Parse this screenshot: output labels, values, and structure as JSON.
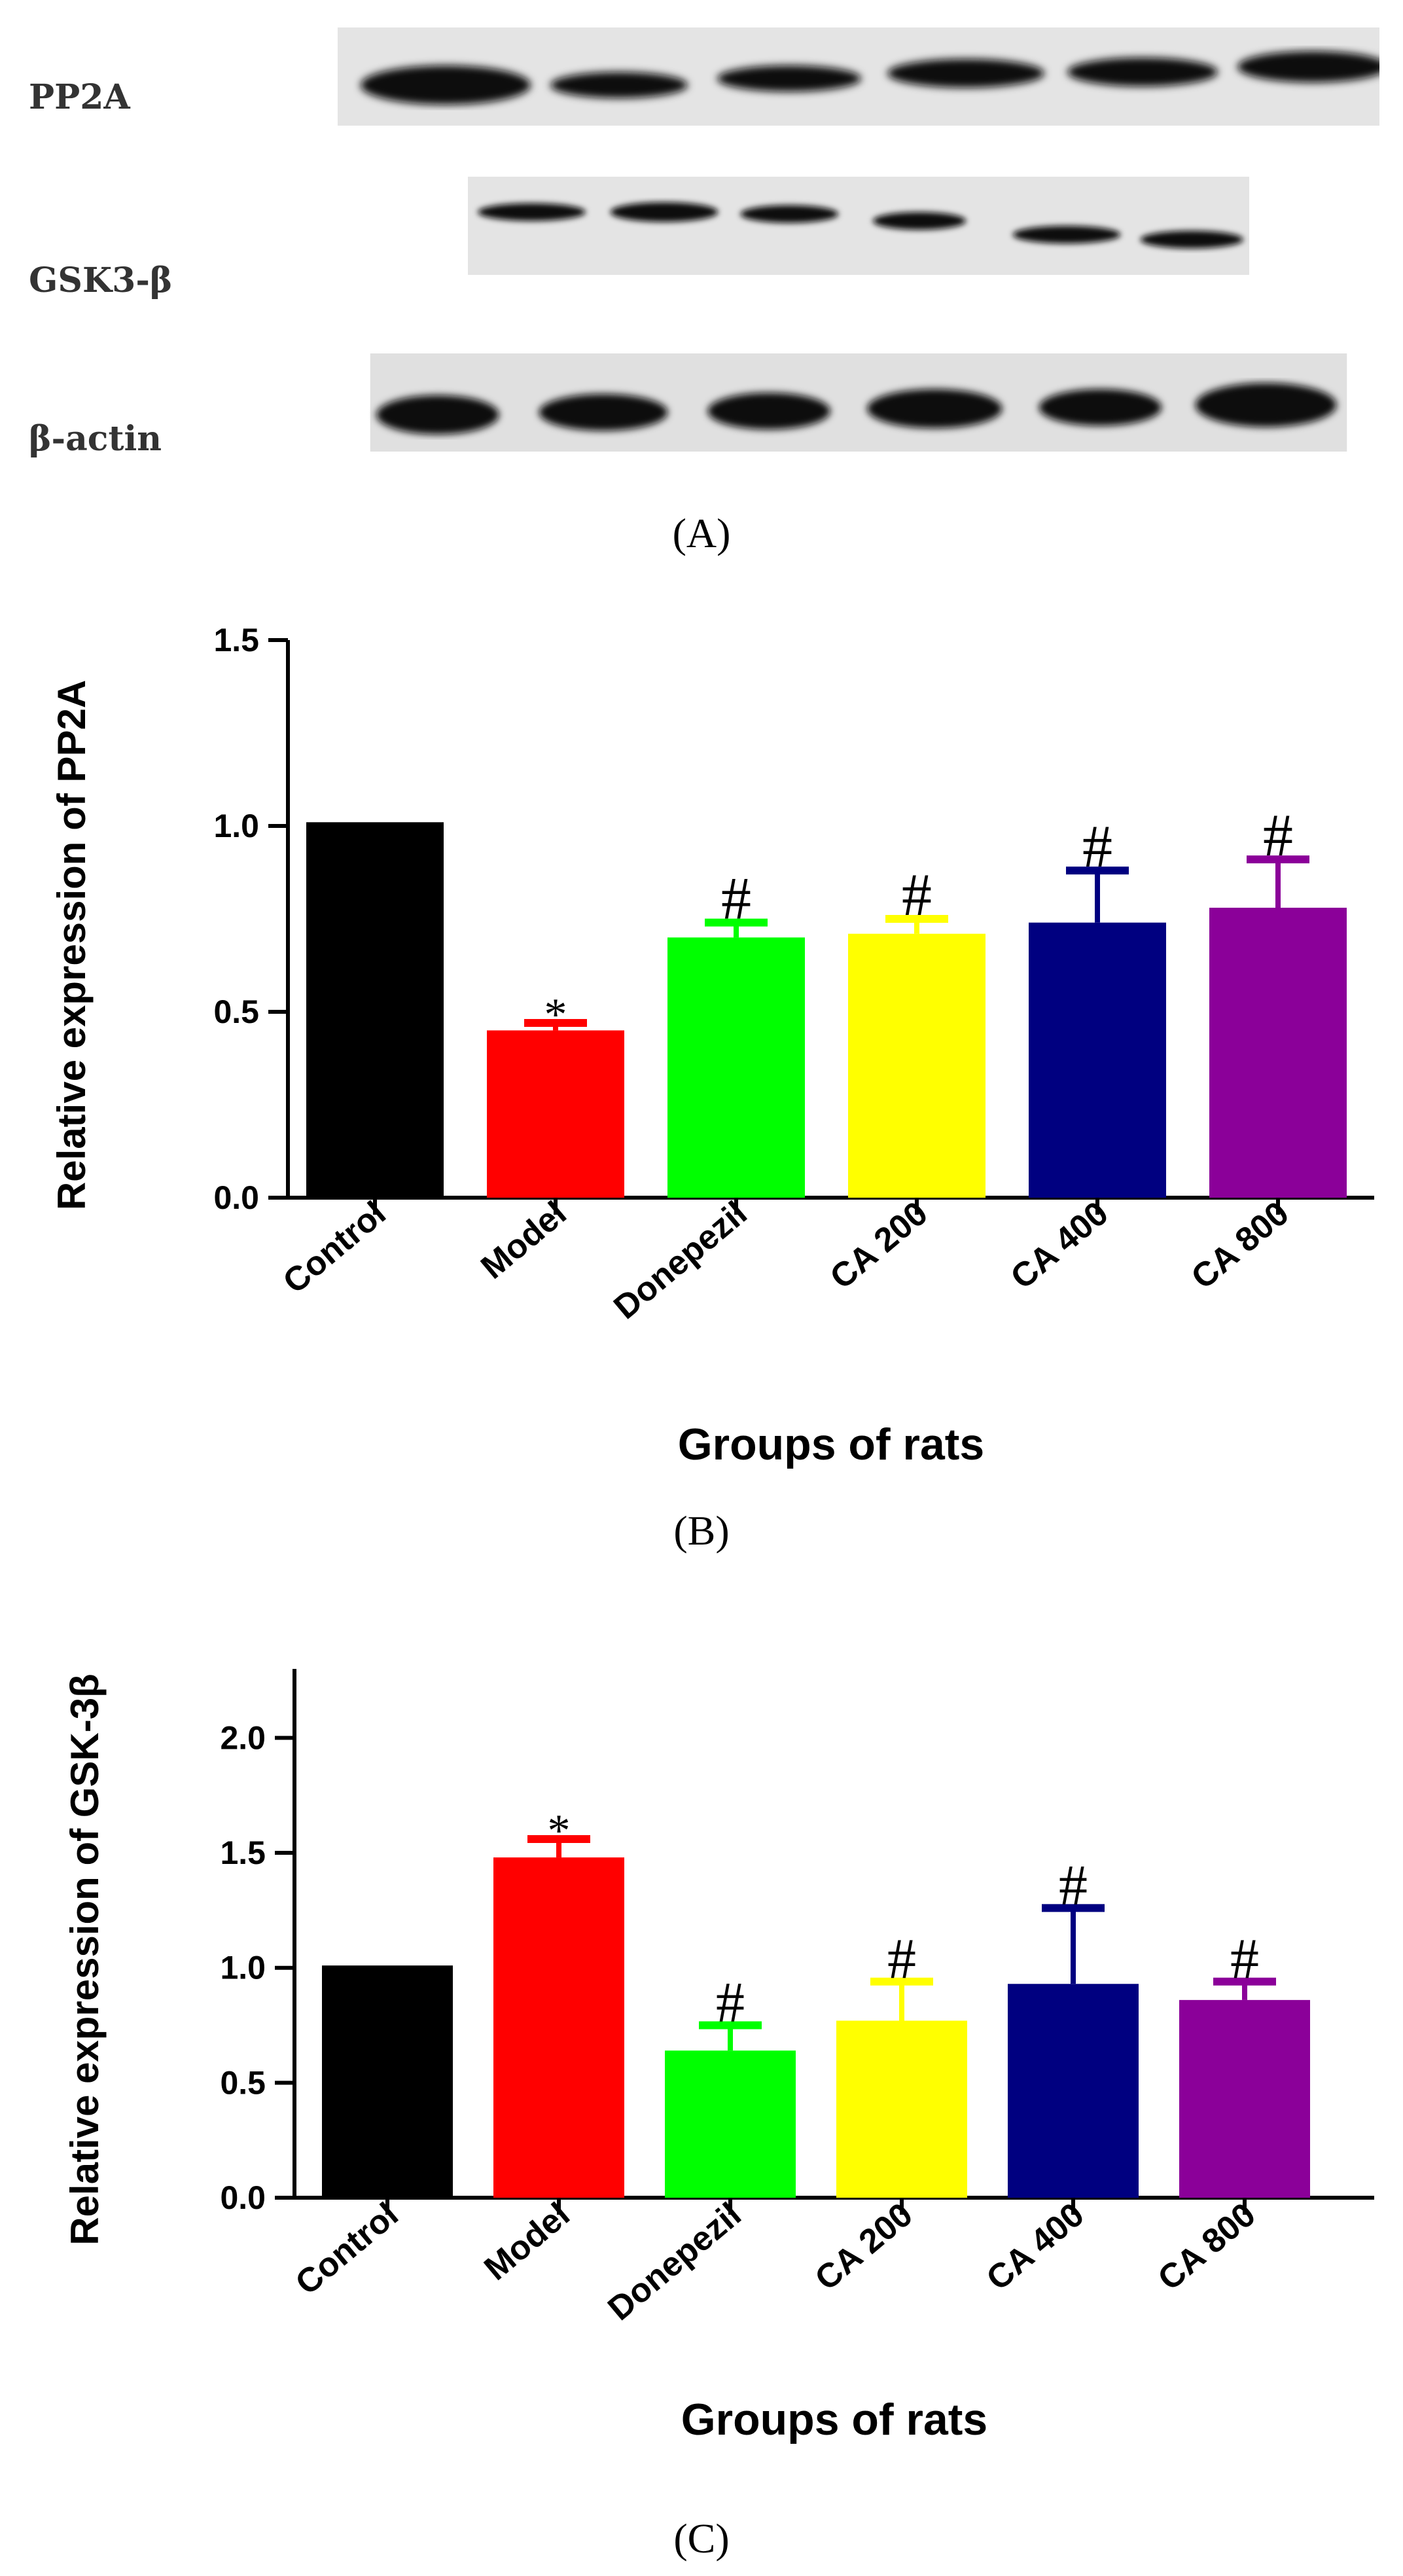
{
  "western_blot": {
    "labels": [
      "PP2A",
      "GSK3-β",
      "β-actin"
    ],
    "caption": "(A)"
  },
  "colors": {
    "Control": "#000000",
    "Model": "#ff0000",
    "Donepezil": "#00ff00",
    "CA 200": "#ffff00",
    "CA 400": "#000080",
    "CA 800": "#8b0099"
  },
  "chart_data": [
    {
      "type": "bar",
      "panel": "B",
      "caption": "(B)",
      "categories": [
        "Control",
        "Model",
        "Donepezil",
        "CA 200",
        "CA 400",
        "CA 800"
      ],
      "values": [
        1.01,
        0.45,
        0.7,
        0.71,
        0.74,
        0.78
      ],
      "errors": [
        0.0,
        0.02,
        0.04,
        0.04,
        0.14,
        0.13
      ],
      "significance": [
        "",
        "*",
        "#",
        "#",
        "#",
        "#"
      ],
      "ylabel": "Relative expression of PP2A",
      "xlabel": "Groups of rats",
      "ylim": [
        0,
        1.5
      ],
      "yticks": [
        "0.0",
        "0.5",
        "1.0",
        "1.5"
      ]
    },
    {
      "type": "bar",
      "panel": "C",
      "caption": "(C)",
      "categories": [
        "Control",
        "Model",
        "Donepezil",
        "CA 200",
        "CA 400",
        "CA 800"
      ],
      "values": [
        1.01,
        1.48,
        0.64,
        0.77,
        0.93,
        0.86
      ],
      "errors": [
        0.0,
        0.08,
        0.11,
        0.17,
        0.33,
        0.08
      ],
      "significance": [
        "",
        "*",
        "#",
        "#",
        "#",
        "#"
      ],
      "ylabel": "Relative expression of GSK-3β",
      "xlabel": "Groups of rats",
      "ylim": [
        0,
        2.3
      ],
      "yticks": [
        "0.0",
        "0.5",
        "1.0",
        "1.5",
        "2.0"
      ]
    }
  ]
}
